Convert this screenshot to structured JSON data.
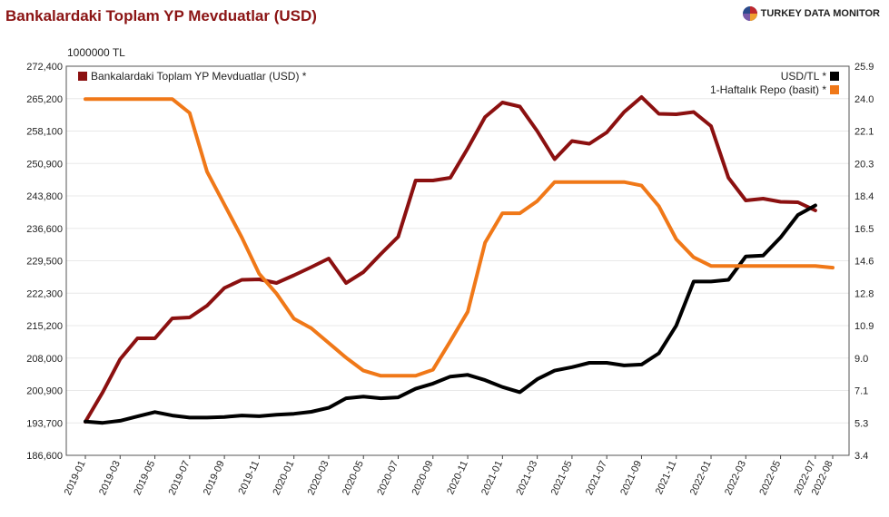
{
  "header": {
    "title": "Bankalardaki Toplam YP Mevduatlar (USD)",
    "brand": "TURKEY DATA MONITOR"
  },
  "colors": {
    "deposits": "#8b1010",
    "usdtl": "#000000",
    "repo": "#f07818",
    "axis": "#666666",
    "grid": "#e8e8e8"
  },
  "chart_data": {
    "type": "line",
    "title": "Bankalardaki Toplam YP Mevduatlar (USD)",
    "left_axis_unit": "1000000 TL",
    "left_ylim": [
      186600,
      272400
    ],
    "left_ticks": [
      "186,600",
      "193,700",
      "200,900",
      "208,000",
      "215,200",
      "222,300",
      "229,500",
      "236,600",
      "243,800",
      "250,900",
      "258,100",
      "265,200",
      "272,400"
    ],
    "right_ylim": [
      3.4,
      25.9
    ],
    "right_ticks": [
      "3.4",
      "5.3",
      "7.1",
      "9.0",
      "10.9",
      "12.8",
      "14.6",
      "16.5",
      "18.4",
      "20.3",
      "22.1",
      "24.0",
      "25.9"
    ],
    "x_tick_labels": [
      "2019-01",
      "2019-03",
      "2019-05",
      "2019-07",
      "2019-09",
      "2019-11",
      "2020-01",
      "2020-03",
      "2020-05",
      "2020-07",
      "2020-09",
      "2020-11",
      "2021-01",
      "2021-03",
      "2021-05",
      "2021-07",
      "2021-09",
      "2021-11",
      "2022-01",
      "2022-03",
      "2022-05",
      "2022-07",
      "2022-08"
    ],
    "legend": {
      "top_left": [
        "Bankalardaki Toplam YP Mevduatlar (USD) *"
      ],
      "top_right": [
        "USD/TL *",
        "1-Haftalık Repo (basit) *"
      ]
    },
    "series": [
      {
        "name": "Bankalardaki Toplam YP Mevduatlar (USD) *",
        "axis": "left",
        "x": [
          "2019-01",
          "2019-02",
          "2019-03",
          "2019-04",
          "2019-05",
          "2019-06",
          "2019-07",
          "2019-08",
          "2019-09",
          "2019-10",
          "2019-11",
          "2019-12",
          "2020-01",
          "2020-02",
          "2020-03",
          "2020-04",
          "2020-05",
          "2020-06",
          "2020-07",
          "2020-08",
          "2020-09",
          "2020-10",
          "2020-11",
          "2020-12",
          "2021-01",
          "2021-02",
          "2021-03",
          "2021-04",
          "2021-05",
          "2021-06",
          "2021-07",
          "2021-08",
          "2021-09",
          "2021-10",
          "2021-11",
          "2021-12",
          "2022-01",
          "2022-02",
          "2022-03",
          "2022-04",
          "2022-05",
          "2022-06",
          "2022-07"
        ],
        "values": [
          194000,
          200500,
          207800,
          212400,
          212400,
          216800,
          217000,
          219600,
          223500,
          225300,
          225400,
          224600,
          226300,
          228100,
          230000,
          224600,
          227000,
          231000,
          234800,
          247200,
          247200,
          247800,
          254300,
          261200,
          264400,
          263500,
          258100,
          251900,
          255900,
          255300,
          257800,
          262300,
          265600,
          261900,
          261800,
          262300,
          259200,
          247800,
          242800,
          243200,
          242500,
          242400,
          240600
        ]
      },
      {
        "name": "USD/TL *",
        "axis": "right",
        "x": [
          "2019-01",
          "2019-02",
          "2019-03",
          "2019-04",
          "2019-05",
          "2019-06",
          "2019-07",
          "2019-08",
          "2019-09",
          "2019-10",
          "2019-11",
          "2019-12",
          "2020-01",
          "2020-02",
          "2020-03",
          "2020-04",
          "2020-05",
          "2020-06",
          "2020-07",
          "2020-08",
          "2020-09",
          "2020-10",
          "2020-11",
          "2020-12",
          "2021-01",
          "2021-02",
          "2021-03",
          "2021-04",
          "2021-05",
          "2021-06",
          "2021-07",
          "2021-08",
          "2021-09",
          "2021-10",
          "2021-11",
          "2021-12",
          "2022-01",
          "2022-02",
          "2022-03",
          "2022-04",
          "2022-05",
          "2022-06",
          "2022-07"
        ],
        "values": [
          5.35,
          5.28,
          5.4,
          5.65,
          5.9,
          5.7,
          5.58,
          5.58,
          5.62,
          5.7,
          5.66,
          5.75,
          5.8,
          5.92,
          6.15,
          6.7,
          6.8,
          6.7,
          6.75,
          7.25,
          7.55,
          7.95,
          8.05,
          7.75,
          7.35,
          7.05,
          7.8,
          8.3,
          8.5,
          8.75,
          8.75,
          8.6,
          8.65,
          9.3,
          10.9,
          13.45,
          13.45,
          13.55,
          14.9,
          14.95,
          16.0,
          17.3,
          17.85
        ]
      },
      {
        "name": "1-Haftalık Repo (basit) *",
        "axis": "right",
        "x": [
          "2019-01",
          "2019-02",
          "2019-03",
          "2019-04",
          "2019-05",
          "2019-06",
          "2019-07",
          "2019-08",
          "2019-09",
          "2019-10",
          "2019-11",
          "2019-12",
          "2020-01",
          "2020-02",
          "2020-03",
          "2020-04",
          "2020-05",
          "2020-06",
          "2020-07",
          "2020-08",
          "2020-09",
          "2020-10",
          "2020-11",
          "2020-12",
          "2021-01",
          "2021-02",
          "2021-03",
          "2021-04",
          "2021-05",
          "2021-06",
          "2021-07",
          "2021-08",
          "2021-09",
          "2021-10",
          "2021-11",
          "2021-12",
          "2022-01",
          "2022-02",
          "2022-03",
          "2022-04",
          "2022-05",
          "2022-06",
          "2022-07",
          "2022-08"
        ],
        "values": [
          24.0,
          24.0,
          24.0,
          24.0,
          24.0,
          24.0,
          23.2,
          19.8,
          17.9,
          16.0,
          13.9,
          12.75,
          11.3,
          10.75,
          9.9,
          9.05,
          8.3,
          8.0,
          8.0,
          8.0,
          8.35,
          10.0,
          11.7,
          15.7,
          17.4,
          17.4,
          18.1,
          19.2,
          19.2,
          19.2,
          19.2,
          19.2,
          19.0,
          17.8,
          15.9,
          14.85,
          14.35,
          14.35,
          14.35,
          14.35,
          14.35,
          14.35,
          14.35,
          14.25
        ]
      }
    ]
  }
}
